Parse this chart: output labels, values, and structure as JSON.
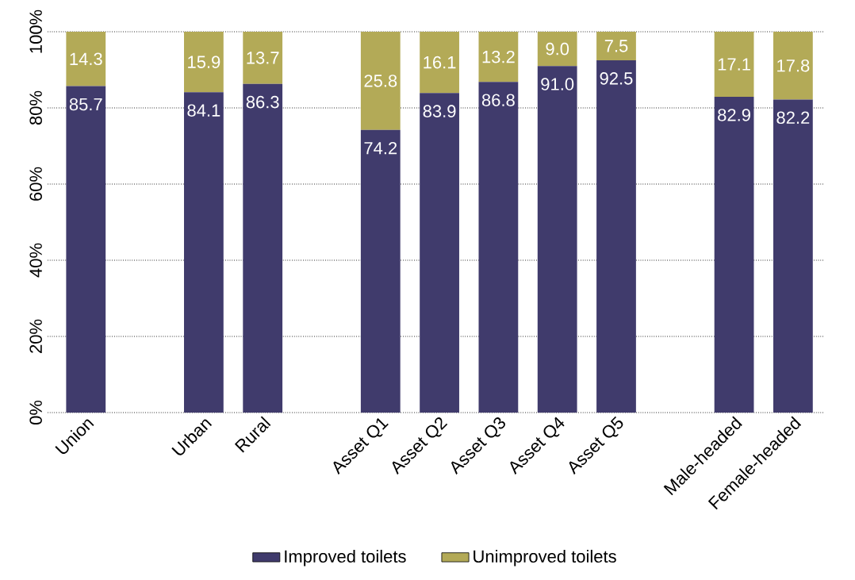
{
  "chart_data": {
    "type": "bar",
    "stacked": true,
    "categories": [
      "Union",
      null,
      "Urban",
      "Rural",
      null,
      "Asset Q1",
      "Asset Q2",
      "Asset Q3",
      "Asset Q4",
      "Asset Q5",
      null,
      "Male-headed",
      "Female-headed"
    ],
    "series": [
      {
        "name": "Improved toilets",
        "color": "#403b6c",
        "values": [
          85.7,
          null,
          84.1,
          86.3,
          null,
          74.2,
          83.9,
          86.8,
          91.0,
          92.5,
          null,
          82.9,
          82.2
        ],
        "value_labels": [
          "85.7",
          null,
          "84.1",
          "86.3",
          null,
          "74.2",
          "83.9",
          "86.8",
          "91.0",
          "92.5",
          null,
          "82.9",
          "82.2"
        ]
      },
      {
        "name": "Unimproved toilets",
        "color": "#b3aa57",
        "values": [
          14.3,
          null,
          15.9,
          13.7,
          null,
          25.8,
          16.1,
          13.2,
          9.0,
          7.5,
          null,
          17.1,
          17.8
        ],
        "value_labels": [
          "14.3",
          null,
          "15.9",
          "13.7",
          null,
          "25.8",
          "16.1",
          "13.2",
          "9.0",
          "7.5",
          null,
          "17.1",
          "17.8"
        ]
      }
    ],
    "ylim": [
      0,
      100
    ],
    "yticks": [
      {
        "value": 0,
        "label": "0%"
      },
      {
        "value": 20,
        "label": "20%"
      },
      {
        "value": 40,
        "label": "40%"
      },
      {
        "value": 60,
        "label": "60%"
      },
      {
        "value": 80,
        "label": "80%"
      },
      {
        "value": 100,
        "label": "100%"
      }
    ],
    "grid": "y",
    "legend": "bottom"
  }
}
